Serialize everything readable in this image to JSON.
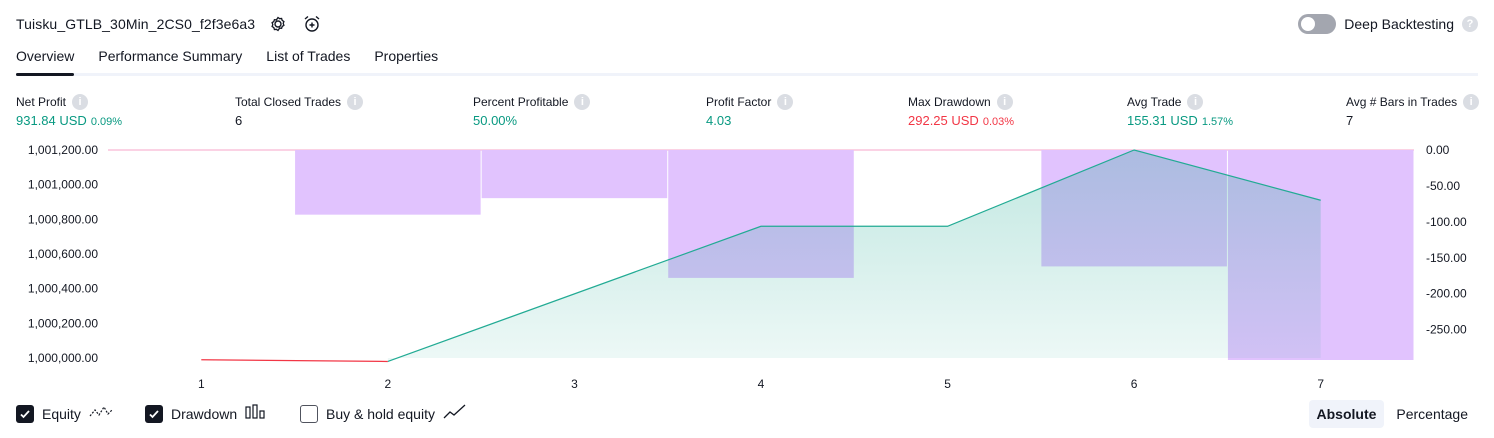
{
  "header": {
    "title": "Tuisku_GTLB_30Min_2CS0_f2f3e6a3",
    "deep_backtesting_label": "Deep Backtesting",
    "help_glyph": "?"
  },
  "tabs": [
    {
      "label": "Overview",
      "active": true
    },
    {
      "label": "Performance Summary",
      "active": false
    },
    {
      "label": "List of Trades",
      "active": false
    },
    {
      "label": "Properties",
      "active": false
    }
  ],
  "metrics": {
    "net_profit": {
      "label": "Net Profit",
      "value": "931.84 USD",
      "pct": "0.09%"
    },
    "total_closed_trades": {
      "label": "Total Closed Trades",
      "value": "6"
    },
    "percent_profitable": {
      "label": "Percent Profitable",
      "value": "50.00%"
    },
    "profit_factor": {
      "label": "Profit Factor",
      "value": "4.03"
    },
    "max_drawdown": {
      "label": "Max Drawdown",
      "value": "292.25 USD",
      "pct": "0.03%"
    },
    "avg_trade": {
      "label": "Avg Trade",
      "value": "155.31 USD",
      "pct": "1.57%"
    },
    "avg_bars": {
      "label": "Avg # Bars in Trades",
      "value": "7"
    }
  },
  "footer": {
    "equity_label": "Equity",
    "equity_checked": true,
    "drawdown_label": "Drawdown",
    "drawdown_checked": true,
    "buyhold_label": "Buy & hold equity",
    "buyhold_checked": false,
    "absolute_label": "Absolute",
    "percentage_label": "Percentage",
    "selected_mode": "Absolute"
  },
  "colors": {
    "positive": "#089981",
    "negative": "#f23645",
    "drawdown_fill": "#e1c3fe",
    "equity_line": "#22ab94",
    "equity_line_loss": "#f23645"
  },
  "chart_data": {
    "type": "area",
    "x": [
      1,
      2,
      3,
      4,
      5,
      6,
      7
    ],
    "x_tick_labels": [
      "1",
      "2",
      "3",
      "4",
      "5",
      "6",
      "7"
    ],
    "series": [
      {
        "axis": "left",
        "type": "line",
        "values": [
          999990,
          999980,
          null,
          1000760,
          1000760,
          1001200,
          1000910
        ]
      },
      {
        "axis": "right",
        "type": "bar",
        "values": [
          0,
          -90,
          -67,
          -178,
          0,
          -162,
          -292.25
        ]
      }
    ],
    "left_axis": {
      "ticks": [
        "1,000,000.00",
        "1,000,200.00",
        "1,000,400.00",
        "1,000,600.00",
        "1,000,800.00",
        "1,001,000.00",
        "1,001,200.00"
      ],
      "range": [
        1000000,
        1001200
      ]
    },
    "right_axis": {
      "ticks": [
        "0.00",
        "-50.00",
        "-100.00",
        "-150.00",
        "-200.00",
        "-250.00"
      ],
      "range": [
        -292.25,
        0
      ]
    },
    "grid": false,
    "legend": "bottom-left"
  }
}
